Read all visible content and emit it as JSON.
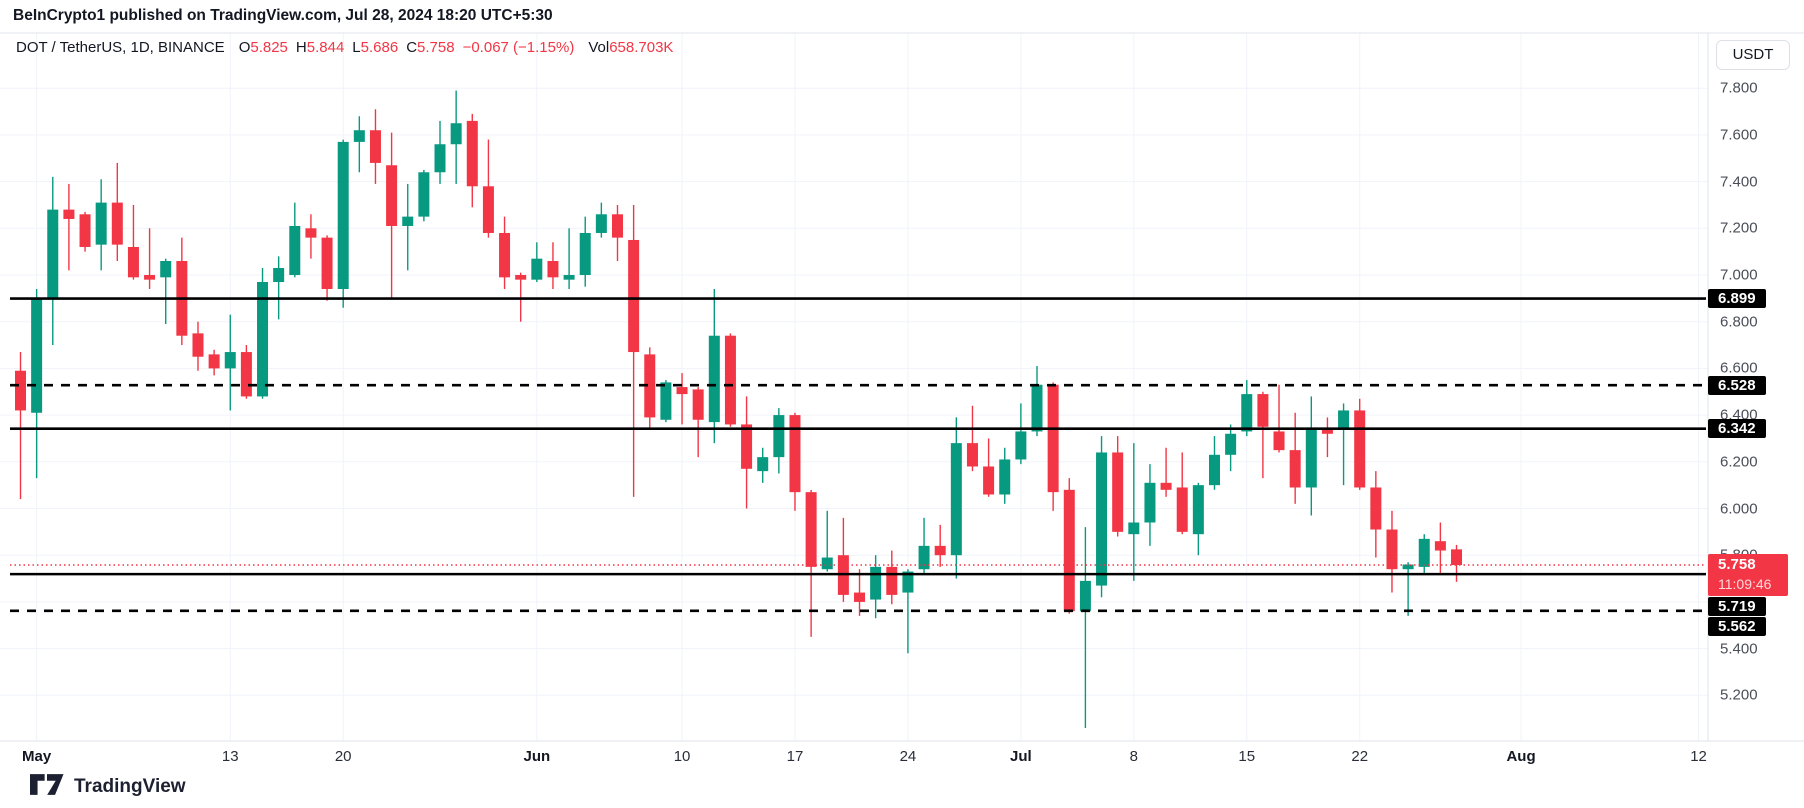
{
  "header": {
    "title": "BeInCrypto1 published on TradingView.com, Jul 28, 2024 18:20 UTC+5:30"
  },
  "legend": {
    "symbol": "DOT / TetherUS, 1D, BINANCE",
    "o_label": "O",
    "o": "5.825",
    "h_label": "H",
    "h": "5.844",
    "l_label": "L",
    "l": "5.686",
    "c_label": "C",
    "c": "5.758",
    "change": "−0.067 (−1.15%)",
    "vol_label": "Vol",
    "vol": "658.703K"
  },
  "axis": {
    "currency": "USDT"
  },
  "footer": {
    "brand": "TradingView"
  },
  "colors": {
    "up": "#089981",
    "down": "#F23645",
    "grid": "#f0f3fa",
    "border": "#e0e3eb",
    "level_line": "#000000",
    "last_price": "#F23645",
    "label_bg": "#000000",
    "label_text": "#ffffff"
  },
  "chart_data": {
    "type": "candlestick",
    "title": "DOT / TetherUS, 1D, BINANCE",
    "ylim": [
      5.0,
      8.04
    ],
    "grid": true,
    "candles_ohlc": [
      [
        6.59,
        6.67,
        6.04,
        6.42
      ],
      [
        6.41,
        6.94,
        6.13,
        6.9
      ],
      [
        6.9,
        7.42,
        6.7,
        7.28
      ],
      [
        7.28,
        7.39,
        7.02,
        7.24
      ],
      [
        7.26,
        7.27,
        7.1,
        7.12
      ],
      [
        7.13,
        7.41,
        7.02,
        7.31
      ],
      [
        7.31,
        7.48,
        7.06,
        7.13
      ],
      [
        7.12,
        7.3,
        6.98,
        6.99
      ],
      [
        7.0,
        7.2,
        6.94,
        6.98
      ],
      [
        6.99,
        7.07,
        6.79,
        7.06
      ],
      [
        7.06,
        7.16,
        6.7,
        6.74
      ],
      [
        6.75,
        6.8,
        6.59,
        6.65
      ],
      [
        6.66,
        6.68,
        6.57,
        6.6
      ],
      [
        6.6,
        6.83,
        6.42,
        6.67
      ],
      [
        6.67,
        6.7,
        6.47,
        6.48
      ],
      [
        6.48,
        7.03,
        6.47,
        6.97
      ],
      [
        6.97,
        7.08,
        6.81,
        7.03
      ],
      [
        7.0,
        7.31,
        6.99,
        7.21
      ],
      [
        7.2,
        7.26,
        7.07,
        7.16
      ],
      [
        7.16,
        7.17,
        6.89,
        6.94
      ],
      [
        6.94,
        7.58,
        6.86,
        7.57
      ],
      [
        7.57,
        7.68,
        7.44,
        7.62
      ],
      [
        7.62,
        7.71,
        7.39,
        7.48
      ],
      [
        7.47,
        7.61,
        6.9,
        7.21
      ],
      [
        7.21,
        7.39,
        7.02,
        7.25
      ],
      [
        7.25,
        7.45,
        7.23,
        7.44
      ],
      [
        7.44,
        7.66,
        7.39,
        7.56
      ],
      [
        7.56,
        7.79,
        7.39,
        7.65
      ],
      [
        7.66,
        7.69,
        7.29,
        7.38
      ],
      [
        7.38,
        7.58,
        7.16,
        7.18
      ],
      [
        7.18,
        7.25,
        6.94,
        6.99
      ],
      [
        7.0,
        7.01,
        6.8,
        6.98
      ],
      [
        6.98,
        7.14,
        6.97,
        7.07
      ],
      [
        7.06,
        7.14,
        6.94,
        6.99
      ],
      [
        6.98,
        7.2,
        6.94,
        7.0
      ],
      [
        7.0,
        7.25,
        6.95,
        7.18
      ],
      [
        7.18,
        7.31,
        7.16,
        7.26
      ],
      [
        7.26,
        7.3,
        7.06,
        7.16
      ],
      [
        7.15,
        7.3,
        6.05,
        6.67
      ],
      [
        6.66,
        6.69,
        6.34,
        6.39
      ],
      [
        6.38,
        6.55,
        6.37,
        6.54
      ],
      [
        6.52,
        6.58,
        6.36,
        6.49
      ],
      [
        6.51,
        6.52,
        6.22,
        6.38
      ],
      [
        6.37,
        6.94,
        6.28,
        6.74
      ],
      [
        6.74,
        6.75,
        6.35,
        6.36
      ],
      [
        6.36,
        6.48,
        6.0,
        6.17
      ],
      [
        6.16,
        6.26,
        6.11,
        6.22
      ],
      [
        6.22,
        6.43,
        6.15,
        6.4
      ],
      [
        6.4,
        6.41,
        5.99,
        6.07
      ],
      [
        6.07,
        6.08,
        5.45,
        5.75
      ],
      [
        5.74,
        5.99,
        5.73,
        5.79
      ],
      [
        5.8,
        5.96,
        5.6,
        5.63
      ],
      [
        5.64,
        5.74,
        5.54,
        5.6
      ],
      [
        5.61,
        5.8,
        5.53,
        5.75
      ],
      [
        5.75,
        5.82,
        5.59,
        5.63
      ],
      [
        5.64,
        5.74,
        5.38,
        5.73
      ],
      [
        5.74,
        5.96,
        5.72,
        5.84
      ],
      [
        5.84,
        5.93,
        5.75,
        5.8
      ],
      [
        5.8,
        6.39,
        5.7,
        6.28
      ],
      [
        6.28,
        6.44,
        6.16,
        6.18
      ],
      [
        6.18,
        6.3,
        6.05,
        6.06
      ],
      [
        6.06,
        6.26,
        6.02,
        6.21
      ],
      [
        6.21,
        6.45,
        6.19,
        6.33
      ],
      [
        6.33,
        6.61,
        6.31,
        6.53
      ],
      [
        6.53,
        6.54,
        5.99,
        6.07
      ],
      [
        6.08,
        6.13,
        5.55,
        5.56
      ],
      [
        5.56,
        5.92,
        5.06,
        5.69
      ],
      [
        5.67,
        6.31,
        5.62,
        6.24
      ],
      [
        6.24,
        6.31,
        5.88,
        5.9
      ],
      [
        5.89,
        6.28,
        5.69,
        5.94
      ],
      [
        5.94,
        6.19,
        5.84,
        6.11
      ],
      [
        6.11,
        6.26,
        6.05,
        6.08
      ],
      [
        6.09,
        6.24,
        5.89,
        5.9
      ],
      [
        5.89,
        6.11,
        5.8,
        6.1
      ],
      [
        6.1,
        6.31,
        6.08,
        6.23
      ],
      [
        6.23,
        6.36,
        6.16,
        6.32
      ],
      [
        6.33,
        6.55,
        6.31,
        6.49
      ],
      [
        6.49,
        6.5,
        6.13,
        6.35
      ],
      [
        6.33,
        6.53,
        6.24,
        6.25
      ],
      [
        6.25,
        6.41,
        6.02,
        6.09
      ],
      [
        6.09,
        6.48,
        5.97,
        6.34
      ],
      [
        6.34,
        6.39,
        6.22,
        6.32
      ],
      [
        6.34,
        6.45,
        6.1,
        6.42
      ],
      [
        6.42,
        6.47,
        6.08,
        6.09
      ],
      [
        6.09,
        6.16,
        5.79,
        5.91
      ],
      [
        5.91,
        5.99,
        5.64,
        5.74
      ],
      [
        5.74,
        5.77,
        5.54,
        5.76
      ],
      [
        5.75,
        5.89,
        5.72,
        5.87
      ],
      [
        5.86,
        5.94,
        5.72,
        5.82
      ],
      [
        5.825,
        5.844,
        5.686,
        5.758
      ]
    ],
    "x_ticks": [
      {
        "label": "May",
        "index": 1,
        "bold": true
      },
      {
        "label": "13",
        "index": 13,
        "bold": false
      },
      {
        "label": "20",
        "index": 20,
        "bold": false
      },
      {
        "label": "Jun",
        "index": 32,
        "bold": true
      },
      {
        "label": "10",
        "index": 41,
        "bold": false
      },
      {
        "label": "17",
        "index": 48,
        "bold": false
      },
      {
        "label": "24",
        "index": 55,
        "bold": false
      },
      {
        "label": "Jul",
        "index": 62,
        "bold": true
      },
      {
        "label": "8",
        "index": 69,
        "bold": false
      },
      {
        "label": "15",
        "index": 76,
        "bold": false
      },
      {
        "label": "22",
        "index": 83,
        "bold": false
      },
      {
        "label": "Aug",
        "index": 93,
        "bold": true
      },
      {
        "label": "12",
        "index": 104,
        "bold": false
      }
    ],
    "y_ticks": [
      {
        "label": "7.800",
        "price": 7.8
      },
      {
        "label": "7.600",
        "price": 7.6
      },
      {
        "label": "7.400",
        "price": 7.4
      },
      {
        "label": "7.200",
        "price": 7.2
      },
      {
        "label": "7.000",
        "price": 7.0
      },
      {
        "label": "6.800",
        "price": 6.8
      },
      {
        "label": "6.600",
        "price": 6.6
      },
      {
        "label": "6.400",
        "price": 6.4
      },
      {
        "label": "6.200",
        "price": 6.2
      },
      {
        "label": "6.000",
        "price": 6.0
      },
      {
        "label": "5.800",
        "price": 5.8
      },
      {
        "label": "5.400",
        "price": 5.4
      },
      {
        "label": "5.200",
        "price": 5.2
      }
    ],
    "unlabeled_grid_prices": [
      5.6
    ],
    "levels": [
      {
        "price": 6.899,
        "label": "6.899",
        "style": "solid"
      },
      {
        "price": 6.528,
        "label": "6.528",
        "style": "dashed"
      },
      {
        "price": 6.342,
        "label": "6.342",
        "style": "solid"
      },
      {
        "price": 5.719,
        "label": "5.719",
        "style": "solid"
      },
      {
        "price": 5.562,
        "label": "5.562",
        "style": "dashed"
      }
    ],
    "last_price": {
      "price": 5.758,
      "label": "5.758",
      "countdown": "11:09:46"
    }
  }
}
